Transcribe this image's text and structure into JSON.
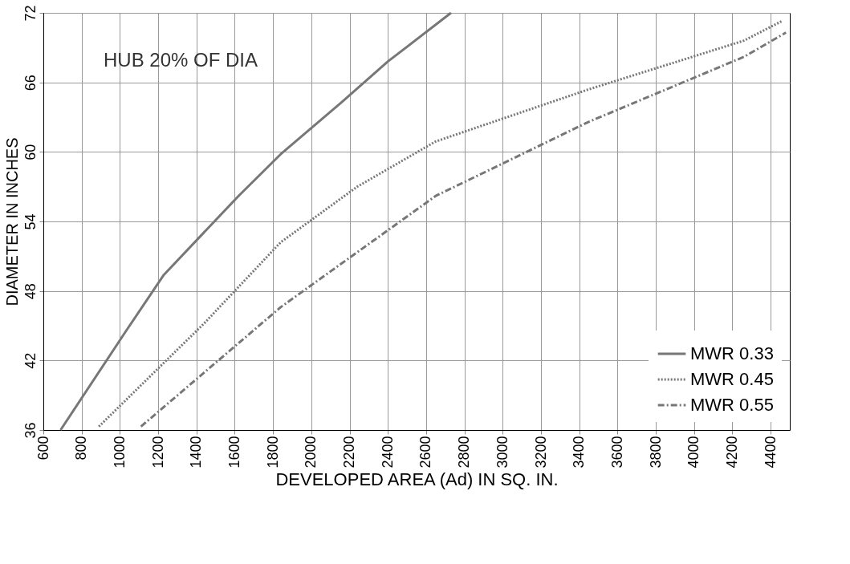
{
  "chart_data": {
    "type": "line",
    "xlabel": "DEVELOPED AREA (Ad) IN SQ. IN.",
    "ylabel": "DIAMETER IN INCHES",
    "annotations": [
      "HUB 20% OF DIA"
    ],
    "xlim": [
      600,
      4500
    ],
    "xticks": [
      600,
      800,
      1000,
      1200,
      1400,
      1600,
      1800,
      2000,
      2200,
      2400,
      2600,
      2800,
      3000,
      3200,
      3400,
      3600,
      3800,
      4000,
      4200,
      4400
    ],
    "ylim": [
      36,
      72
    ],
    "yticks": [
      36,
      42,
      48,
      54,
      60,
      66,
      72
    ],
    "grid": true,
    "legend": "bottom right",
    "marker": "none",
    "series": [
      {
        "name": "MWR 0.33",
        "color": "#777777",
        "line_style": "solid",
        "x": [
          690,
          1030,
          1230,
          1620,
          1840,
          2160,
          2400,
          2730
        ],
        "values": [
          36,
          44.5,
          49.4,
          56.2,
          59.8,
          64.3,
          67.8,
          72
        ]
      },
      {
        "name": "MWR 0.45",
        "color": "#777777",
        "line_style": "dotted",
        "x": [
          890,
          1440,
          1840,
          2240,
          2650,
          3450,
          4260,
          4460
        ],
        "values": [
          36.3,
          45.2,
          52.2,
          57,
          60.9,
          65.4,
          69.6,
          71.3
        ]
      },
      {
        "name": "MWR 0.55",
        "color": "#777777",
        "line_style": "dashed",
        "x": [
          1110,
          1840,
          2650,
          3450,
          4260,
          4480
        ],
        "values": [
          36.3,
          46.6,
          56.2,
          62.6,
          68.2,
          70.3
        ]
      }
    ]
  }
}
